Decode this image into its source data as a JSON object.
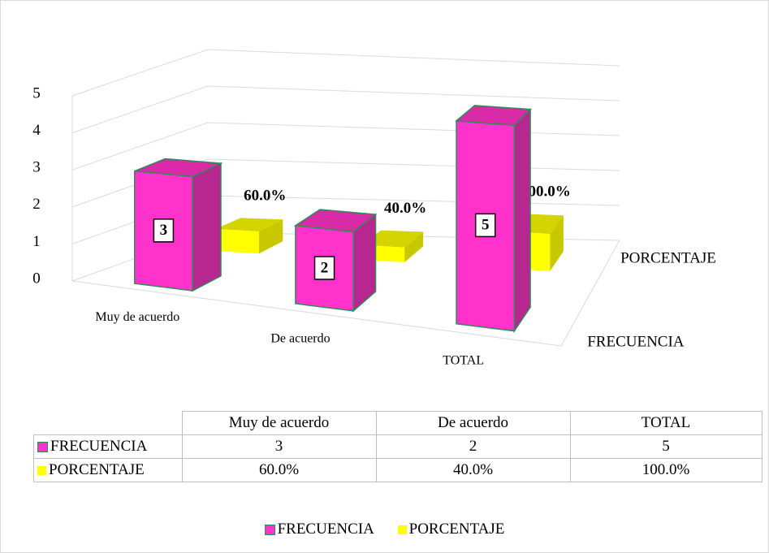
{
  "chart_data": {
    "type": "bar3d",
    "categories": [
      "Muy de acuerdo",
      "De acuerdo",
      "TOTAL"
    ],
    "series": [
      {
        "name": "FRECUENCIA",
        "color": "#ff33cc",
        "values": [
          3,
          2,
          5
        ]
      },
      {
        "name": "PORCENTAJE",
        "color": "#ffff00",
        "values": [
          0.6,
          0.4,
          1.0
        ],
        "value_labels": [
          "60.0%",
          "40.0%",
          "100.0%"
        ]
      }
    ],
    "ylim": [
      0,
      5
    ],
    "yticks": [
      0,
      1,
      2,
      3,
      4,
      5
    ],
    "grid": true,
    "legend": "bottom",
    "data_table": true
  }
}
